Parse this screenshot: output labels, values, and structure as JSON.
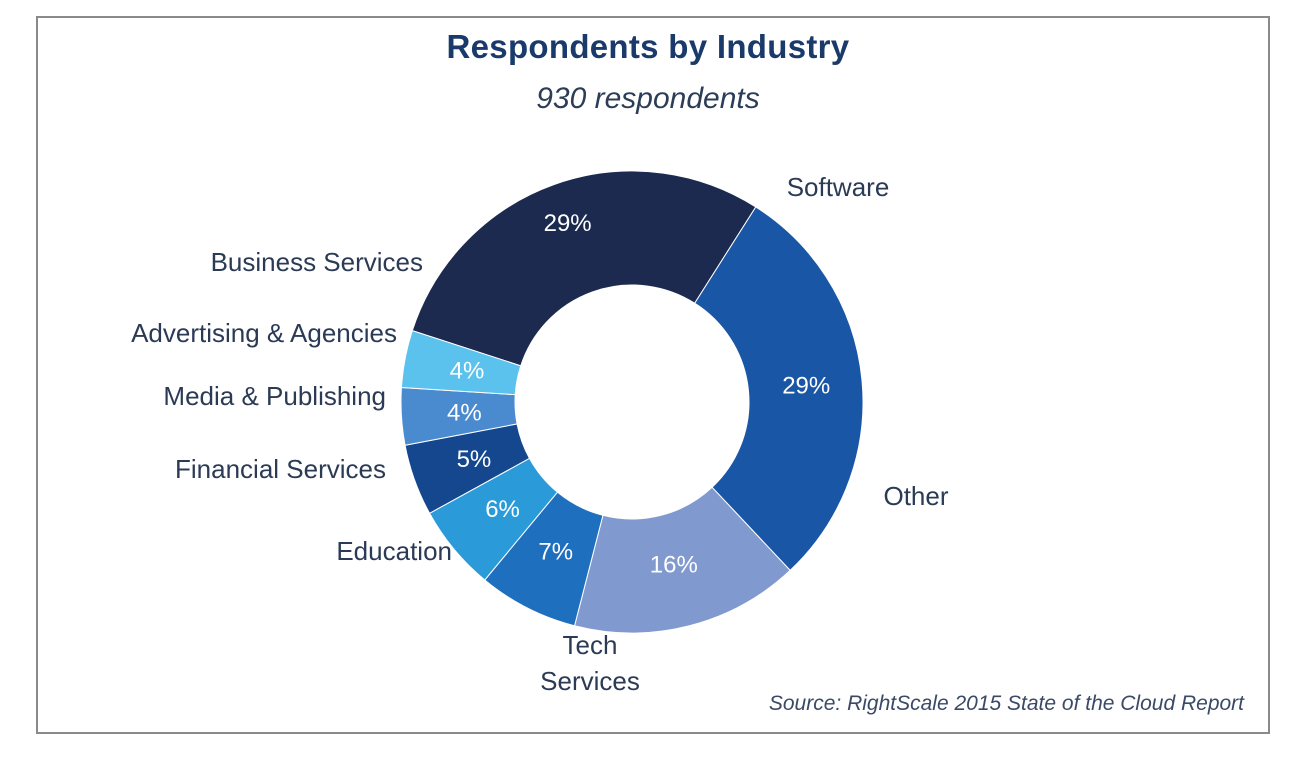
{
  "chart_data": {
    "type": "pie",
    "variant": "donut",
    "title": "Respondents by Industry",
    "subtitle": "930 respondents",
    "source": "Source: RightScale 2015 State of the Cloud Report",
    "slices": [
      {
        "name": "Software",
        "value": 29,
        "label": "29%",
        "color": "#1b2a4e"
      },
      {
        "name": "Other",
        "value": 29,
        "label": "29%",
        "color": "#1a56a6"
      },
      {
        "name": "Tech Services",
        "value": 16,
        "label": "16%",
        "color": "#8099cf"
      },
      {
        "name": "Education",
        "value": 7,
        "label": "7%",
        "color": "#1f6fbf"
      },
      {
        "name": "Financial Services",
        "value": 6,
        "label": "6%",
        "color": "#2a9ad8"
      },
      {
        "name": "Media & Publishing",
        "value": 5,
        "label": "5%",
        "color": "#15478e"
      },
      {
        "name": "Advertising & Agencies",
        "value": 4,
        "label": "4%",
        "color": "#4a8bd0"
      },
      {
        "name": "Business Services",
        "value": 4,
        "label": "4%",
        "color": "#5bc2ee"
      }
    ],
    "category_labels": {
      "Software": [
        "Software"
      ],
      "Other": [
        "Other"
      ],
      "Tech Services": [
        "Tech",
        "Services"
      ],
      "Education": [
        "Education"
      ],
      "Financial Services": [
        "Financial Services"
      ],
      "Media & Publishing": [
        "Media & Publishing"
      ],
      "Advertising & Agencies": [
        "Advertising & Agencies"
      ],
      "Business Services": [
        "Business Services"
      ]
    }
  }
}
